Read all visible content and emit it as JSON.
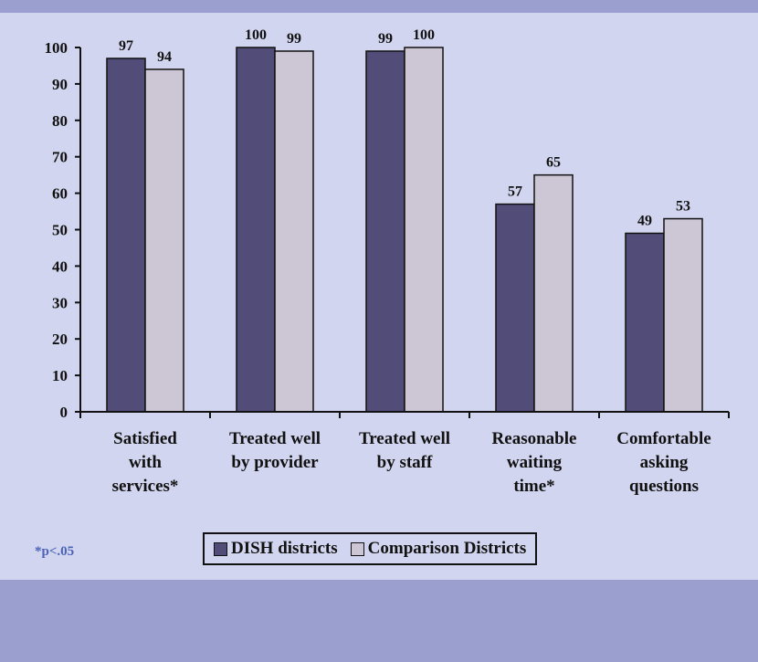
{
  "chart_data": {
    "type": "bar",
    "categories": [
      [
        "Satisfied",
        "with",
        "services*"
      ],
      [
        "Treated well",
        "by provider"
      ],
      [
        "Treated well",
        "by staff"
      ],
      [
        "Reasonable",
        "waiting",
        "time*"
      ],
      [
        "Comfortable",
        "asking",
        "questions"
      ]
    ],
    "series": [
      {
        "name": "DISH districts",
        "values": [
          97,
          100,
          99,
          57,
          49
        ],
        "color": "#524c79"
      },
      {
        "name": "Comparison Districts",
        "values": [
          94,
          99,
          100,
          65,
          53
        ],
        "color": "#cdc6d5"
      }
    ],
    "ylim": [
      0,
      100
    ],
    "yticks": [
      "0",
      "10",
      "20",
      "30",
      "40",
      "50",
      "60",
      "70",
      "80",
      "90",
      "100"
    ],
    "grid": false,
    "legend_position": "bottom"
  },
  "footnote": "*p<.05",
  "colors": {
    "panel": "#d2d5ef",
    "band": "#9a9fd0",
    "footnote": "#4b63b8"
  }
}
